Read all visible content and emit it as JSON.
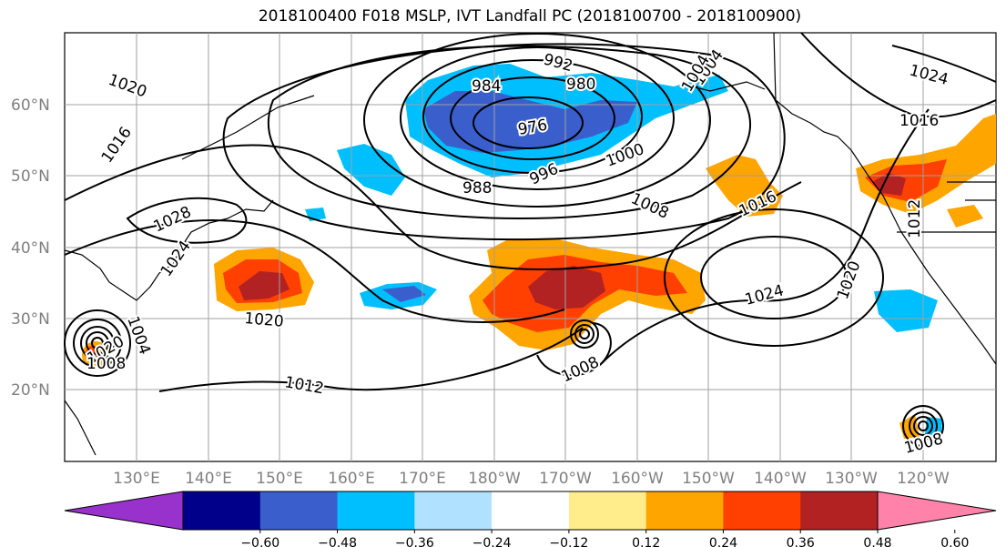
{
  "title": "2018100400 F018 MSLP, IVT Landfall PC (2018100700 - 2018100900)",
  "lat_labels": [
    "60°N",
    "50°N",
    "40°N",
    "30°N",
    "20°N"
  ],
  "lon_labels": [
    "130°E",
    "140°E",
    "150°E",
    "160°E",
    "170°E",
    "180°W",
    "170°W",
    "160°W",
    "150°W",
    "140°W",
    "130°W",
    "120°W"
  ],
  "contour_labels": [
    "1020",
    "1016",
    "1028",
    "1024",
    "1020",
    "1004",
    "1008",
    "1004",
    "984",
    "992",
    "980",
    "976",
    "1004",
    "1024",
    "1016",
    "988",
    "996",
    "1000",
    "1008",
    "1016",
    "1012",
    "1020",
    "1012",
    "1008",
    "1024",
    "1020",
    "1008"
  ],
  "colorbar": {
    "ticks": [
      "−0.60",
      "−0.48",
      "−0.36",
      "−0.24",
      "−0.12",
      "0.12",
      "0.24",
      "0.36",
      "0.48",
      "0.60"
    ],
    "colors": [
      "#9932cc",
      "#00008b",
      "#3a5fcd",
      "#00bfff",
      "#b0e2ff",
      "#ffffff",
      "#ffec8b",
      "#ffa500",
      "#ff4000",
      "#b22222",
      "#ff82ab"
    ]
  },
  "pc_colors": {
    "strong_pos": "#b22222",
    "pos3": "#ff4000",
    "pos2": "#ffa500",
    "pos1": "#ffec8b",
    "neg1": "#b0e2ff",
    "neg2": "#00bfff",
    "neg3": "#3a5fcd"
  }
}
